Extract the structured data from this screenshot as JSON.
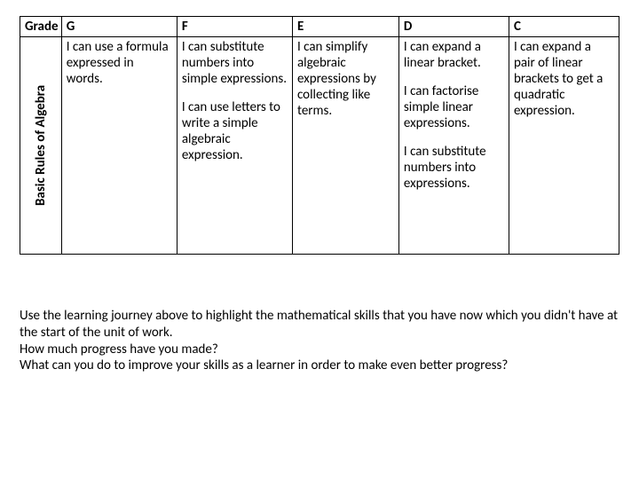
{
  "table": {
    "header": {
      "side": "Grade",
      "cols": [
        "G",
        "F",
        "E",
        "D",
        "C"
      ]
    },
    "row": {
      "side": "Basic Rules of Algebra",
      "g": "I can use a formula expressed in words.",
      "f1": "I can substitute numbers into simple expressions.",
      "f2": "I can use letters to write a simple algebraic expression.",
      "e": "I can simplify algebraic expressions by collecting like terms.",
      "d1": "I can expand a linear bracket.",
      "d2": "I can factorise simple linear expressions.",
      "d3": "I can substitute numbers into expressions.",
      "c": "I can expand a pair of linear brackets to get a quadratic expression."
    }
  },
  "footer": {
    "l1": "Use the learning journey above to highlight the mathematical skills that you have now which you didn't have at the start of the unit of work.",
    "l2": "How much progress have you made?",
    "l3": "What can you do to improve your skills as a learner in order to make even better progress?"
  }
}
